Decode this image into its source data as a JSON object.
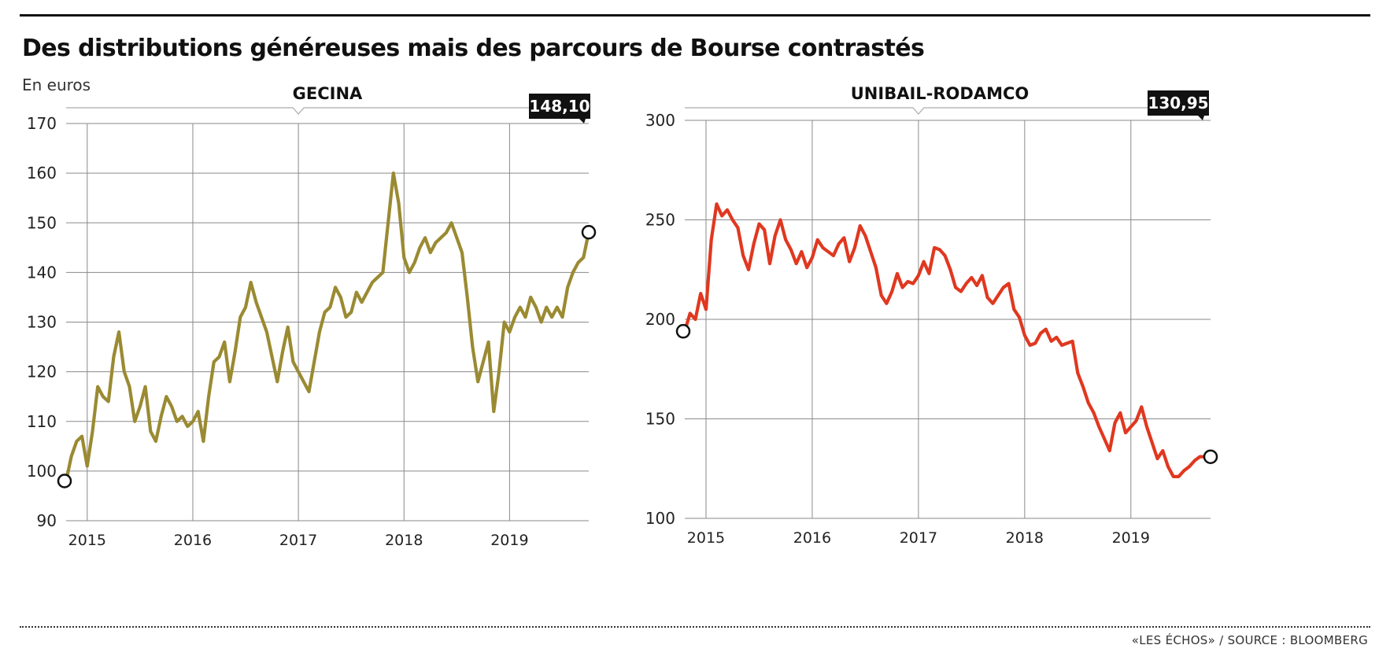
{
  "title": "Des distributions généreuses mais des parcours de Bourse contrastés",
  "unit": "En euros",
  "credit": "«LES ÉCHOS» / SOURCE : BLOOMBERG",
  "chart_data": [
    {
      "type": "line",
      "title": "GECINA",
      "color": "#9a8a32",
      "last_value_label": "148,10",
      "xlim": [
        2014.8,
        2019.75
      ],
      "ylim": [
        90,
        170
      ],
      "yticks": [
        90,
        100,
        110,
        120,
        130,
        140,
        150,
        160,
        170
      ],
      "year_ticks": [
        2015,
        2016,
        2017,
        2018,
        2019
      ],
      "xtick_labels": [
        "2015",
        "2016",
        "2017",
        "2018",
        "2019"
      ],
      "x": [
        2014.8,
        2014.85,
        2014.9,
        2014.95,
        2015.0,
        2015.05,
        2015.1,
        2015.15,
        2015.2,
        2015.25,
        2015.3,
        2015.35,
        2015.4,
        2015.45,
        2015.5,
        2015.55,
        2015.6,
        2015.65,
        2015.7,
        2015.75,
        2015.8,
        2015.85,
        2015.9,
        2015.95,
        2016.0,
        2016.05,
        2016.1,
        2016.15,
        2016.2,
        2016.25,
        2016.3,
        2016.35,
        2016.4,
        2016.45,
        2016.5,
        2016.55,
        2016.6,
        2016.65,
        2016.7,
        2016.75,
        2016.8,
        2016.85,
        2016.9,
        2016.95,
        2017.0,
        2017.05,
        2017.1,
        2017.15,
        2017.2,
        2017.25,
        2017.3,
        2017.35,
        2017.4,
        2017.45,
        2017.5,
        2017.55,
        2017.6,
        2017.65,
        2017.7,
        2017.75,
        2017.8,
        2017.85,
        2017.9,
        2017.95,
        2018.0,
        2018.05,
        2018.1,
        2018.15,
        2018.2,
        2018.25,
        2018.3,
        2018.35,
        2018.4,
        2018.45,
        2018.5,
        2018.55,
        2018.6,
        2018.65,
        2018.7,
        2018.75,
        2018.8,
        2018.85,
        2018.9,
        2018.95,
        2019.0,
        2019.05,
        2019.1,
        2019.15,
        2019.2,
        2019.25,
        2019.3,
        2019.35,
        2019.4,
        2019.45,
        2019.5,
        2019.55,
        2019.6,
        2019.65,
        2019.7,
        2019.75
      ],
      "values": [
        98,
        103,
        106,
        107,
        101,
        108,
        117,
        115,
        114,
        123,
        128,
        120,
        117,
        110,
        113,
        117,
        108,
        106,
        111,
        115,
        113,
        110,
        111,
        109,
        110,
        112,
        106,
        115,
        122,
        123,
        126,
        118,
        124,
        131,
        133,
        138,
        134,
        131,
        128,
        123,
        118,
        124,
        129,
        122,
        120,
        118,
        116,
        122,
        128,
        132,
        133,
        137,
        135,
        131,
        132,
        136,
        134,
        136,
        138,
        139,
        140,
        150,
        160,
        154,
        143,
        140,
        142,
        145,
        147,
        144,
        146,
        147,
        148,
        150,
        147,
        144,
        135,
        125,
        118,
        122,
        126,
        112,
        120,
        130,
        128,
        131,
        133,
        131,
        135,
        133,
        130,
        133,
        131,
        133,
        131,
        137,
        140,
        142,
        143,
        148.1
      ]
    },
    {
      "type": "line",
      "title": "UNIBAIL-RODAMCO",
      "color": "#e03820",
      "last_value_label": "130,95",
      "xlim": [
        2014.8,
        2019.75
      ],
      "ylim": [
        100,
        300
      ],
      "yticks": [
        100,
        150,
        200,
        250,
        300
      ],
      "year_ticks": [
        2015,
        2016,
        2017,
        2018,
        2019
      ],
      "xtick_labels": [
        "2015",
        "2016",
        "2017",
        "2018",
        "2019"
      ],
      "x": [
        2014.8,
        2014.85,
        2014.9,
        2014.95,
        2015.0,
        2015.05,
        2015.1,
        2015.15,
        2015.2,
        2015.25,
        2015.3,
        2015.35,
        2015.4,
        2015.45,
        2015.5,
        2015.55,
        2015.6,
        2015.65,
        2015.7,
        2015.75,
        2015.8,
        2015.85,
        2015.9,
        2015.95,
        2016.0,
        2016.05,
        2016.1,
        2016.15,
        2016.2,
        2016.25,
        2016.3,
        2016.35,
        2016.4,
        2016.45,
        2016.5,
        2016.55,
        2016.6,
        2016.65,
        2016.7,
        2016.75,
        2016.8,
        2016.85,
        2016.9,
        2016.95,
        2017.0,
        2017.05,
        2017.1,
        2017.15,
        2017.2,
        2017.25,
        2017.3,
        2017.35,
        2017.4,
        2017.45,
        2017.5,
        2017.55,
        2017.6,
        2017.65,
        2017.7,
        2017.75,
        2017.8,
        2017.85,
        2017.9,
        2017.95,
        2018.0,
        2018.05,
        2018.1,
        2018.15,
        2018.2,
        2018.25,
        2018.3,
        2018.35,
        2018.4,
        2018.45,
        2018.5,
        2018.55,
        2018.6,
        2018.65,
        2018.7,
        2018.75,
        2018.8,
        2018.85,
        2018.9,
        2018.95,
        2019.0,
        2019.05,
        2019.1,
        2019.15,
        2019.2,
        2019.25,
        2019.3,
        2019.35,
        2019.4,
        2019.45,
        2019.5,
        2019.55,
        2019.6,
        2019.65,
        2019.7,
        2019.75
      ],
      "values": [
        194,
        203,
        200,
        213,
        205,
        240,
        258,
        252,
        255,
        250,
        246,
        232,
        225,
        238,
        248,
        245,
        228,
        242,
        250,
        240,
        235,
        228,
        234,
        226,
        231,
        240,
        236,
        234,
        232,
        238,
        241,
        229,
        236,
        247,
        242,
        234,
        226,
        212,
        208,
        214,
        223,
        216,
        219,
        218,
        222,
        229,
        223,
        236,
        235,
        232,
        225,
        216,
        214,
        218,
        221,
        217,
        222,
        211,
        208,
        212,
        216,
        218,
        205,
        201,
        192,
        187,
        188,
        193,
        195,
        189,
        191,
        187,
        188,
        189,
        173,
        166,
        158,
        153,
        146,
        140,
        134,
        148,
        153,
        143,
        146,
        149,
        156,
        146,
        138,
        130,
        134,
        126,
        121,
        121,
        124,
        126,
        129,
        131,
        130.95,
        130.95
      ]
    }
  ]
}
